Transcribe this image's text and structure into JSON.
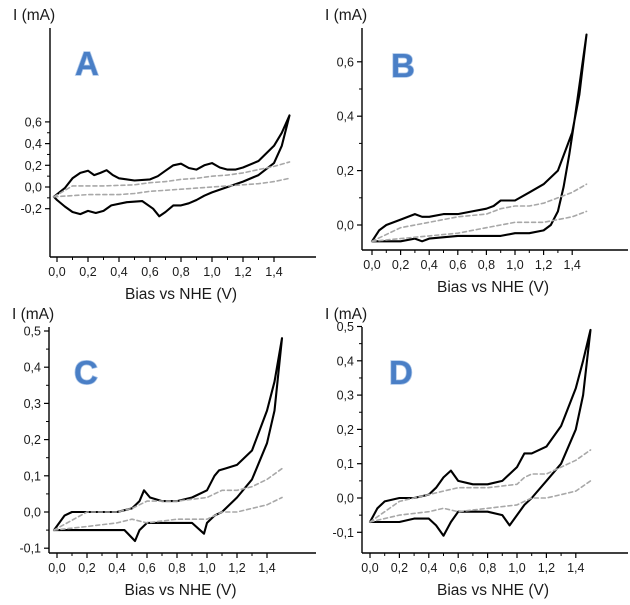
{
  "chart_data": [
    {
      "type": "line",
      "panel_label": "A",
      "xlabel": "Bias vs NHE (V)",
      "ylabel": "I (mA)",
      "xlim": [
        -0.1,
        1.5
      ],
      "ylim": [
        -0.3,
        0.7
      ],
      "x_ticks": [
        "0,0",
        "0,2",
        "0,4",
        "0,6",
        "0,8",
        "1,0",
        "1,2",
        "1,4"
      ],
      "x_tick_values": [
        0,
        0.2,
        0.4,
        0.6,
        0.8,
        1.0,
        1.2,
        1.4
      ],
      "y_ticks": [
        "-0,2",
        "0,0",
        "0,2",
        "0,4",
        "0,6"
      ],
      "y_tick_values": [
        -0.2,
        0,
        0.2,
        0.4,
        0.6
      ],
      "series": [
        {
          "style": "solid",
          "color": "#000000",
          "x": [
            -0.02,
            0.05,
            0.1,
            0.15,
            0.2,
            0.24,
            0.28,
            0.32,
            0.36,
            0.4,
            0.5,
            0.6,
            0.65,
            0.7,
            0.75,
            0.8,
            0.85,
            0.9,
            0.95,
            1.0,
            1.05,
            1.1,
            1.15,
            1.2,
            1.3,
            1.4,
            1.45,
            1.5,
            1.45,
            1.4,
            1.3,
            1.2,
            1.1,
            1.0,
            0.95,
            0.9,
            0.85,
            0.8,
            0.75,
            0.7,
            0.66,
            0.62,
            0.55,
            0.45,
            0.35,
            0.3,
            0.25,
            0.2,
            0.15,
            0.1,
            0.05,
            0.0,
            -0.02
          ],
          "y": [
            -0.09,
            -0.01,
            0.08,
            0.13,
            0.15,
            0.11,
            0.13,
            0.155,
            0.11,
            0.08,
            0.06,
            0.07,
            0.1,
            0.15,
            0.2,
            0.215,
            0.175,
            0.16,
            0.2,
            0.22,
            0.18,
            0.16,
            0.16,
            0.18,
            0.24,
            0.38,
            0.5,
            0.66,
            0.38,
            0.22,
            0.11,
            0.05,
            0.0,
            -0.05,
            -0.08,
            -0.12,
            -0.15,
            -0.17,
            -0.17,
            -0.23,
            -0.27,
            -0.2,
            -0.13,
            -0.14,
            -0.17,
            -0.22,
            -0.24,
            -0.22,
            -0.25,
            -0.23,
            -0.18,
            -0.12,
            -0.09
          ]
        },
        {
          "style": "dashed",
          "color": "#a8a8a8",
          "x": [
            -0.02,
            0.1,
            0.3,
            0.5,
            0.6,
            0.7,
            0.8,
            0.9,
            1.0,
            1.1,
            1.2,
            1.3,
            1.4,
            1.5
          ],
          "y": [
            -0.09,
            0.01,
            0.01,
            0.02,
            0.04,
            0.05,
            0.07,
            0.08,
            0.1,
            0.11,
            0.13,
            0.16,
            0.19,
            0.23
          ]
        },
        {
          "style": "dashed",
          "color": "#a8a8a8",
          "x": [
            -0.02,
            0.2,
            0.4,
            0.5,
            0.6,
            0.7,
            0.8,
            0.9,
            1.0,
            1.1,
            1.2,
            1.3,
            1.4,
            1.5
          ],
          "y": [
            -0.09,
            -0.07,
            -0.07,
            -0.06,
            -0.04,
            -0.03,
            -0.02,
            -0.01,
            0.0,
            0.01,
            0.02,
            0.03,
            0.05,
            0.08
          ]
        }
      ]
    },
    {
      "type": "line",
      "panel_label": "B",
      "xlabel": "Bias vs NHE (V)",
      "ylabel": "I (mA)",
      "xlim": [
        -0.1,
        1.5
      ],
      "ylim": [
        -0.1,
        0.7
      ],
      "x_ticks": [
        "0,0",
        "0,2",
        "0,4",
        "0,6",
        "0,8",
        "1,0",
        "1,2",
        "1,4"
      ],
      "x_tick_values": [
        0,
        0.2,
        0.4,
        0.6,
        0.8,
        1.0,
        1.2,
        1.4
      ],
      "y_ticks": [
        "0,0",
        "0,2",
        "0,4",
        "0,6"
      ],
      "y_tick_values": [
        0,
        0.2,
        0.4,
        0.6
      ],
      "series": [
        {
          "style": "solid",
          "color": "#000000",
          "x": [
            0.0,
            0.05,
            0.1,
            0.2,
            0.3,
            0.35,
            0.4,
            0.5,
            0.6,
            0.7,
            0.8,
            0.85,
            0.9,
            1.0,
            1.1,
            1.2,
            1.3,
            1.4,
            1.45,
            1.5,
            1.46,
            1.42,
            1.38,
            1.34,
            1.3,
            1.25,
            1.2,
            1.1,
            1.0,
            0.9,
            0.8,
            0.6,
            0.4,
            0.35,
            0.3,
            0.2,
            0.1,
            0.0
          ],
          "y": [
            -0.06,
            -0.02,
            0.0,
            0.02,
            0.04,
            0.03,
            0.03,
            0.04,
            0.04,
            0.05,
            0.06,
            0.07,
            0.09,
            0.09,
            0.12,
            0.15,
            0.2,
            0.34,
            0.48,
            0.7,
            0.55,
            0.4,
            0.26,
            0.14,
            0.05,
            0.0,
            -0.02,
            -0.03,
            -0.03,
            -0.04,
            -0.04,
            -0.04,
            -0.05,
            -0.06,
            -0.05,
            -0.06,
            -0.06,
            -0.06
          ]
        },
        {
          "style": "dashed",
          "color": "#a8a8a8",
          "x": [
            0.0,
            0.2,
            0.4,
            0.6,
            0.8,
            0.9,
            1.0,
            1.1,
            1.2,
            1.3,
            1.4,
            1.5
          ],
          "y": [
            -0.06,
            -0.01,
            0.01,
            0.03,
            0.04,
            0.06,
            0.07,
            0.07,
            0.08,
            0.1,
            0.12,
            0.15
          ]
        },
        {
          "style": "dashed",
          "color": "#a8a8a8",
          "x": [
            0.0,
            0.2,
            0.4,
            0.6,
            0.8,
            0.9,
            1.0,
            1.1,
            1.2,
            1.3,
            1.4,
            1.5
          ],
          "y": [
            -0.06,
            -0.05,
            -0.04,
            -0.03,
            -0.01,
            0.0,
            0.01,
            0.01,
            0.01,
            0.02,
            0.03,
            0.05
          ]
        }
      ]
    },
    {
      "type": "line",
      "panel_label": "C",
      "xlabel": "Bias vs NHE (V)",
      "ylabel": "I (mA)",
      "xlim": [
        -0.1,
        1.5
      ],
      "ylim": [
        -0.1,
        0.5
      ],
      "x_ticks": [
        "0,0",
        "0,2",
        "0,4",
        "0,6",
        "0,8",
        "1,0",
        "1,2",
        "1,4"
      ],
      "x_tick_values": [
        0,
        0.2,
        0.4,
        0.6,
        0.8,
        1.0,
        1.2,
        1.4
      ],
      "y_ticks": [
        "-0,1",
        "0,0",
        "0,1",
        "0,2",
        "0,3",
        "0,4",
        "0,5"
      ],
      "y_tick_values": [
        -0.1,
        0,
        0.1,
        0.2,
        0.3,
        0.4,
        0.5
      ],
      "series": [
        {
          "style": "solid",
          "color": "#000000",
          "x": [
            -0.02,
            0.05,
            0.1,
            0.2,
            0.3,
            0.4,
            0.5,
            0.55,
            0.58,
            0.62,
            0.7,
            0.8,
            0.9,
            1.0,
            1.05,
            1.08,
            1.12,
            1.2,
            1.3,
            1.4,
            1.45,
            1.5,
            1.45,
            1.4,
            1.3,
            1.2,
            1.1,
            1.05,
            1.0,
            0.98,
            0.9,
            0.8,
            0.7,
            0.6,
            0.55,
            0.52,
            0.45,
            0.4,
            0.2,
            0.0,
            -0.02
          ],
          "y": [
            -0.05,
            -0.01,
            0.0,
            0.0,
            0.0,
            0.0,
            0.01,
            0.03,
            0.06,
            0.04,
            0.03,
            0.03,
            0.04,
            0.06,
            0.1,
            0.115,
            0.12,
            0.13,
            0.17,
            0.28,
            0.36,
            0.48,
            0.28,
            0.19,
            0.09,
            0.04,
            0.0,
            -0.01,
            -0.03,
            -0.06,
            -0.03,
            -0.03,
            -0.03,
            -0.03,
            -0.05,
            -0.08,
            -0.05,
            -0.05,
            -0.05,
            -0.05,
            -0.05
          ]
        },
        {
          "style": "dashed",
          "color": "#a8a8a8",
          "x": [
            -0.02,
            0.2,
            0.4,
            0.5,
            0.6,
            0.8,
            1.0,
            1.05,
            1.1,
            1.2,
            1.3,
            1.4,
            1.5
          ],
          "y": [
            -0.05,
            0.0,
            0.0,
            0.01,
            0.03,
            0.03,
            0.04,
            0.05,
            0.06,
            0.06,
            0.07,
            0.09,
            0.12
          ]
        },
        {
          "style": "dashed",
          "color": "#a8a8a8",
          "x": [
            -0.02,
            0.2,
            0.4,
            0.5,
            0.6,
            0.8,
            1.0,
            1.05,
            1.1,
            1.2,
            1.3,
            1.4,
            1.5
          ],
          "y": [
            -0.05,
            -0.04,
            -0.03,
            -0.02,
            -0.03,
            -0.02,
            -0.02,
            -0.01,
            0.0,
            0.0,
            0.01,
            0.02,
            0.04
          ]
        }
      ]
    },
    {
      "type": "line",
      "panel_label": "D",
      "xlabel": "Bias vs NHE (V)",
      "ylabel": "I (mA)",
      "xlim": [
        -0.1,
        1.5
      ],
      "ylim": [
        -0.15,
        0.5
      ],
      "x_ticks": [
        "0,0",
        "0,2",
        "0,4",
        "0,6",
        "0,8",
        "1,0",
        "1,2",
        "1,4"
      ],
      "x_tick_values": [
        0,
        0.2,
        0.4,
        0.6,
        0.8,
        1.0,
        1.2,
        1.4
      ],
      "y_ticks": [
        "-0,1",
        "0,0",
        "0,1",
        "0,2",
        "0,3",
        "0,4",
        "0,5"
      ],
      "y_tick_values": [
        -0.1,
        0,
        0.1,
        0.2,
        0.3,
        0.4,
        0.5
      ],
      "series": [
        {
          "style": "solid",
          "color": "#000000",
          "x": [
            0.0,
            0.05,
            0.1,
            0.2,
            0.3,
            0.4,
            0.45,
            0.5,
            0.55,
            0.6,
            0.7,
            0.8,
            0.9,
            1.0,
            1.05,
            1.1,
            1.2,
            1.3,
            1.4,
            1.45,
            1.5,
            1.45,
            1.4,
            1.3,
            1.2,
            1.1,
            1.05,
            1.0,
            0.95,
            0.9,
            0.8,
            0.7,
            0.6,
            0.55,
            0.5,
            0.45,
            0.4,
            0.3,
            0.2,
            0.1,
            0.0
          ],
          "y": [
            -0.07,
            -0.03,
            -0.01,
            0.0,
            0.0,
            0.01,
            0.03,
            0.06,
            0.08,
            0.05,
            0.04,
            0.04,
            0.05,
            0.09,
            0.13,
            0.13,
            0.15,
            0.21,
            0.32,
            0.4,
            0.49,
            0.3,
            0.2,
            0.1,
            0.05,
            0.0,
            -0.02,
            -0.05,
            -0.08,
            -0.05,
            -0.04,
            -0.04,
            -0.04,
            -0.07,
            -0.11,
            -0.08,
            -0.06,
            -0.06,
            -0.07,
            -0.07,
            -0.07
          ]
        },
        {
          "style": "dashed",
          "color": "#a8a8a8",
          "x": [
            0.0,
            0.2,
            0.4,
            0.5,
            0.6,
            0.8,
            1.0,
            1.05,
            1.1,
            1.2,
            1.3,
            1.4,
            1.5
          ],
          "y": [
            -0.07,
            -0.01,
            0.01,
            0.02,
            0.03,
            0.03,
            0.04,
            0.06,
            0.07,
            0.07,
            0.09,
            0.11,
            0.14
          ]
        },
        {
          "style": "dashed",
          "color": "#a8a8a8",
          "x": [
            0.0,
            0.2,
            0.4,
            0.5,
            0.6,
            0.8,
            1.0,
            1.05,
            1.1,
            1.2,
            1.3,
            1.4,
            1.5
          ],
          "y": [
            -0.07,
            -0.05,
            -0.04,
            -0.03,
            -0.04,
            -0.03,
            -0.02,
            -0.01,
            0.0,
            0.0,
            0.01,
            0.02,
            0.05
          ]
        }
      ]
    }
  ]
}
